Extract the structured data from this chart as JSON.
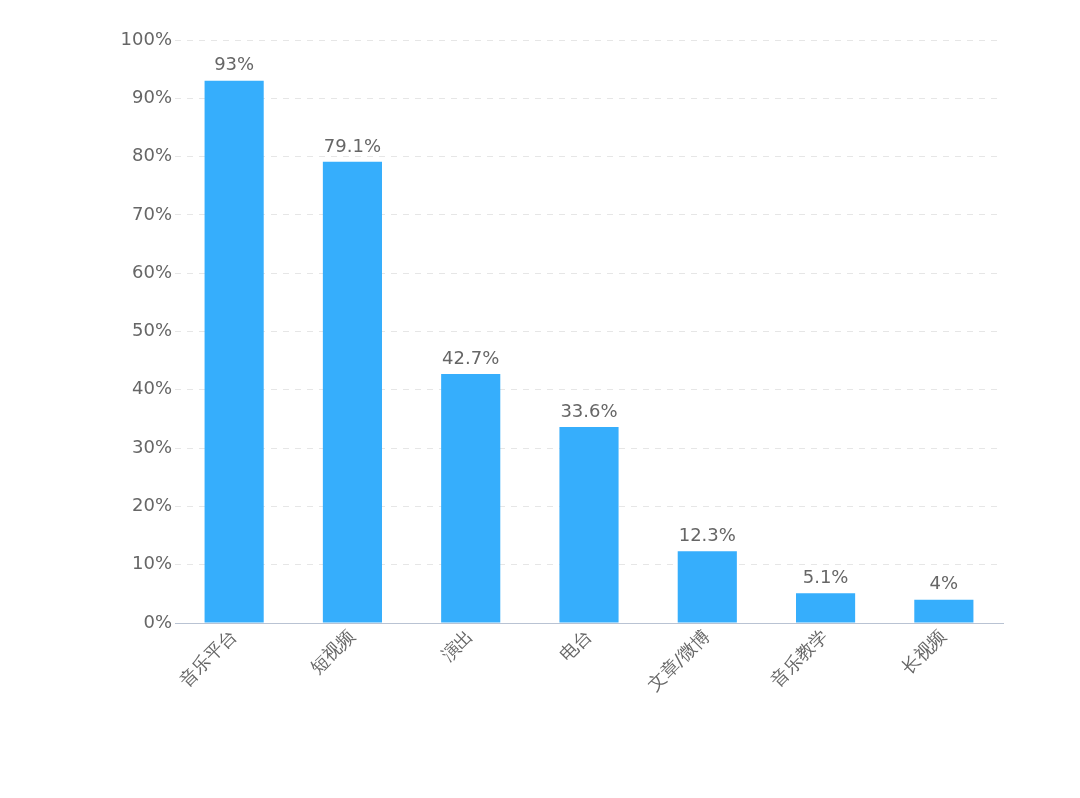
{
  "chart_data": {
    "type": "bar",
    "categories": [
      "音乐平台",
      "短视频",
      "演出",
      "电台",
      "文章/微博",
      "音乐教学",
      "长视频"
    ],
    "values": [
      93,
      79.1,
      42.7,
      33.6,
      12.3,
      5.1,
      4
    ],
    "value_labels": [
      "93%",
      "79.1%",
      "42.7%",
      "33.6%",
      "12.3%",
      "5.1%",
      "4%"
    ],
    "color": "#36aefc",
    "ylim": [
      0,
      100
    ],
    "yticks": [
      {
        "value": 0,
        "label": "0%"
      },
      {
        "value": 10,
        "label": "10%"
      },
      {
        "value": 20,
        "label": "20%"
      },
      {
        "value": 30,
        "label": "30%"
      },
      {
        "value": 40,
        "label": "40%"
      },
      {
        "value": 50,
        "label": "50%"
      },
      {
        "value": 60,
        "label": "60%"
      },
      {
        "value": 70,
        "label": "70%"
      },
      {
        "value": 80,
        "label": "80%"
      },
      {
        "value": 90,
        "label": "90%"
      },
      {
        "value": 100,
        "label": "100%"
      }
    ],
    "grid": "y",
    "legend": false
  }
}
